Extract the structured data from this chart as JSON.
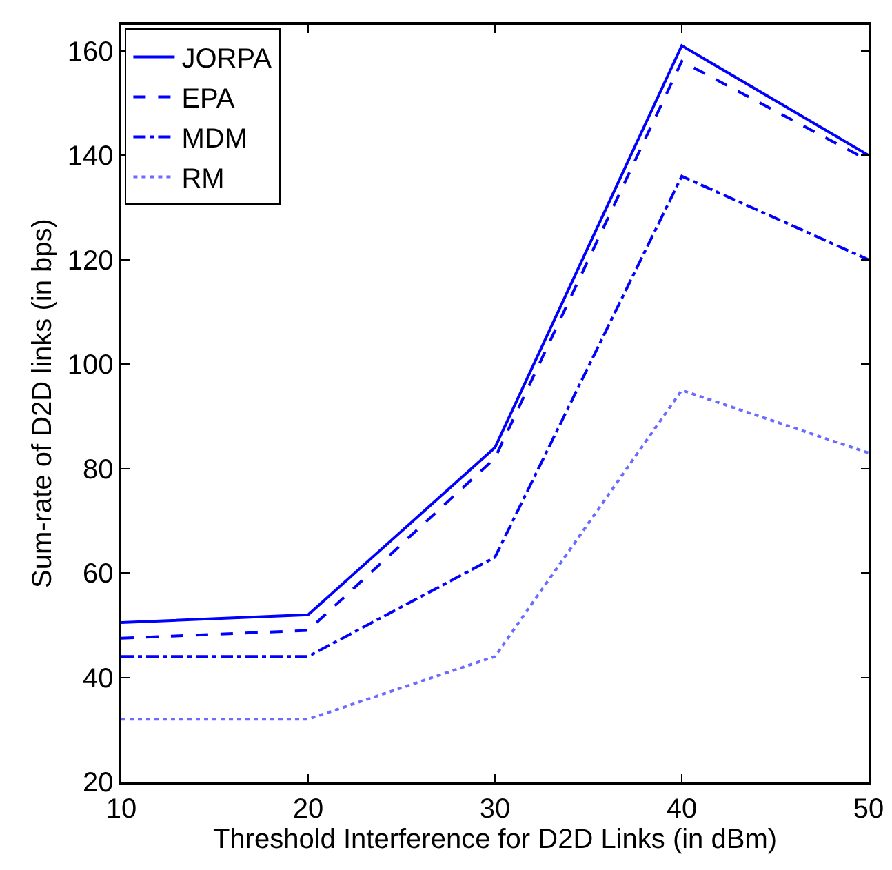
{
  "chart_data": {
    "type": "line",
    "xlabel": "Threshold Interference for D2D Links (in dBm)",
    "ylabel": "Sum-rate of D2D links (in bps)",
    "x": [
      10,
      20,
      30,
      40,
      50
    ],
    "series": [
      {
        "name": "JORPA",
        "color": "#0000ff",
        "line_style": "solid",
        "values": [
          50.5,
          52,
          84,
          161,
          140
        ]
      },
      {
        "name": "EPA",
        "color": "#0000ff",
        "line_style": "dashed",
        "values": [
          47.5,
          49,
          82,
          158,
          139
        ]
      },
      {
        "name": "MDM",
        "color": "#0000ff",
        "line_style": "dashdot",
        "values": [
          44,
          44,
          63,
          136,
          120
        ]
      },
      {
        "name": "RM",
        "color": "#6b6bff",
        "line_style": "dotted",
        "values": [
          32,
          32,
          44,
          95,
          83
        ]
      }
    ],
    "xlim": [
      10,
      50
    ],
    "xticks": [
      10,
      20,
      30,
      40,
      50
    ],
    "ylim": [
      20,
      165
    ],
    "yticks": [
      20,
      40,
      60,
      80,
      100,
      120,
      140,
      160
    ],
    "grid": false,
    "legend": "top left",
    "marker": "none"
  }
}
